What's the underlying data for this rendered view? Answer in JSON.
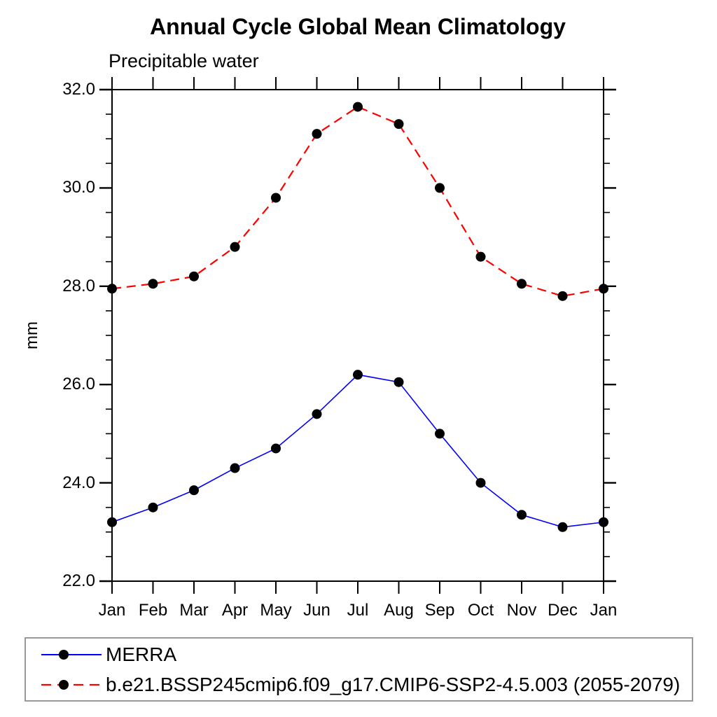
{
  "chart_data": {
    "type": "line",
    "title": "Annual Cycle Global Mean Climatology",
    "subtitle": "Precipitable water",
    "ylabel": "mm",
    "xlabel": "",
    "categories": [
      "Jan",
      "Feb",
      "Mar",
      "Apr",
      "May",
      "Jun",
      "Jul",
      "Aug",
      "Sep",
      "Oct",
      "Nov",
      "Dec",
      "Jan"
    ],
    "ylim": [
      22.0,
      32.0
    ],
    "ytick_labels": [
      "22.0",
      "24.0",
      "26.0",
      "28.0",
      "30.0",
      "32.0"
    ],
    "ytick_major_step": 2.0,
    "ytick_minor_step": 0.5,
    "grid": false,
    "frame": "box-with-outward-ticks",
    "legend_position": "bottom-left-box",
    "legend_border_color": "#999999",
    "axis_color": "#000000",
    "series": [
      {
        "name": "MERRA",
        "color": "#0000ff",
        "line_style": "solid",
        "marker": "filled-circle",
        "marker_color": "#000000",
        "values": [
          23.2,
          23.5,
          23.85,
          24.3,
          24.7,
          25.4,
          26.2,
          26.05,
          25.0,
          24.0,
          23.35,
          23.1,
          23.2
        ]
      },
      {
        "name": "b.e21.BSSP245cmip6.f09_g17.CMIP6-SSP2-4.5.003 (2055-2079)",
        "color": "#ff0000",
        "line_style": "dashed",
        "marker": "filled-circle",
        "marker_color": "#000000",
        "values": [
          27.95,
          28.05,
          28.2,
          28.8,
          29.8,
          31.1,
          31.65,
          31.3,
          30.0,
          28.6,
          28.05,
          27.8,
          27.95
        ]
      }
    ]
  }
}
